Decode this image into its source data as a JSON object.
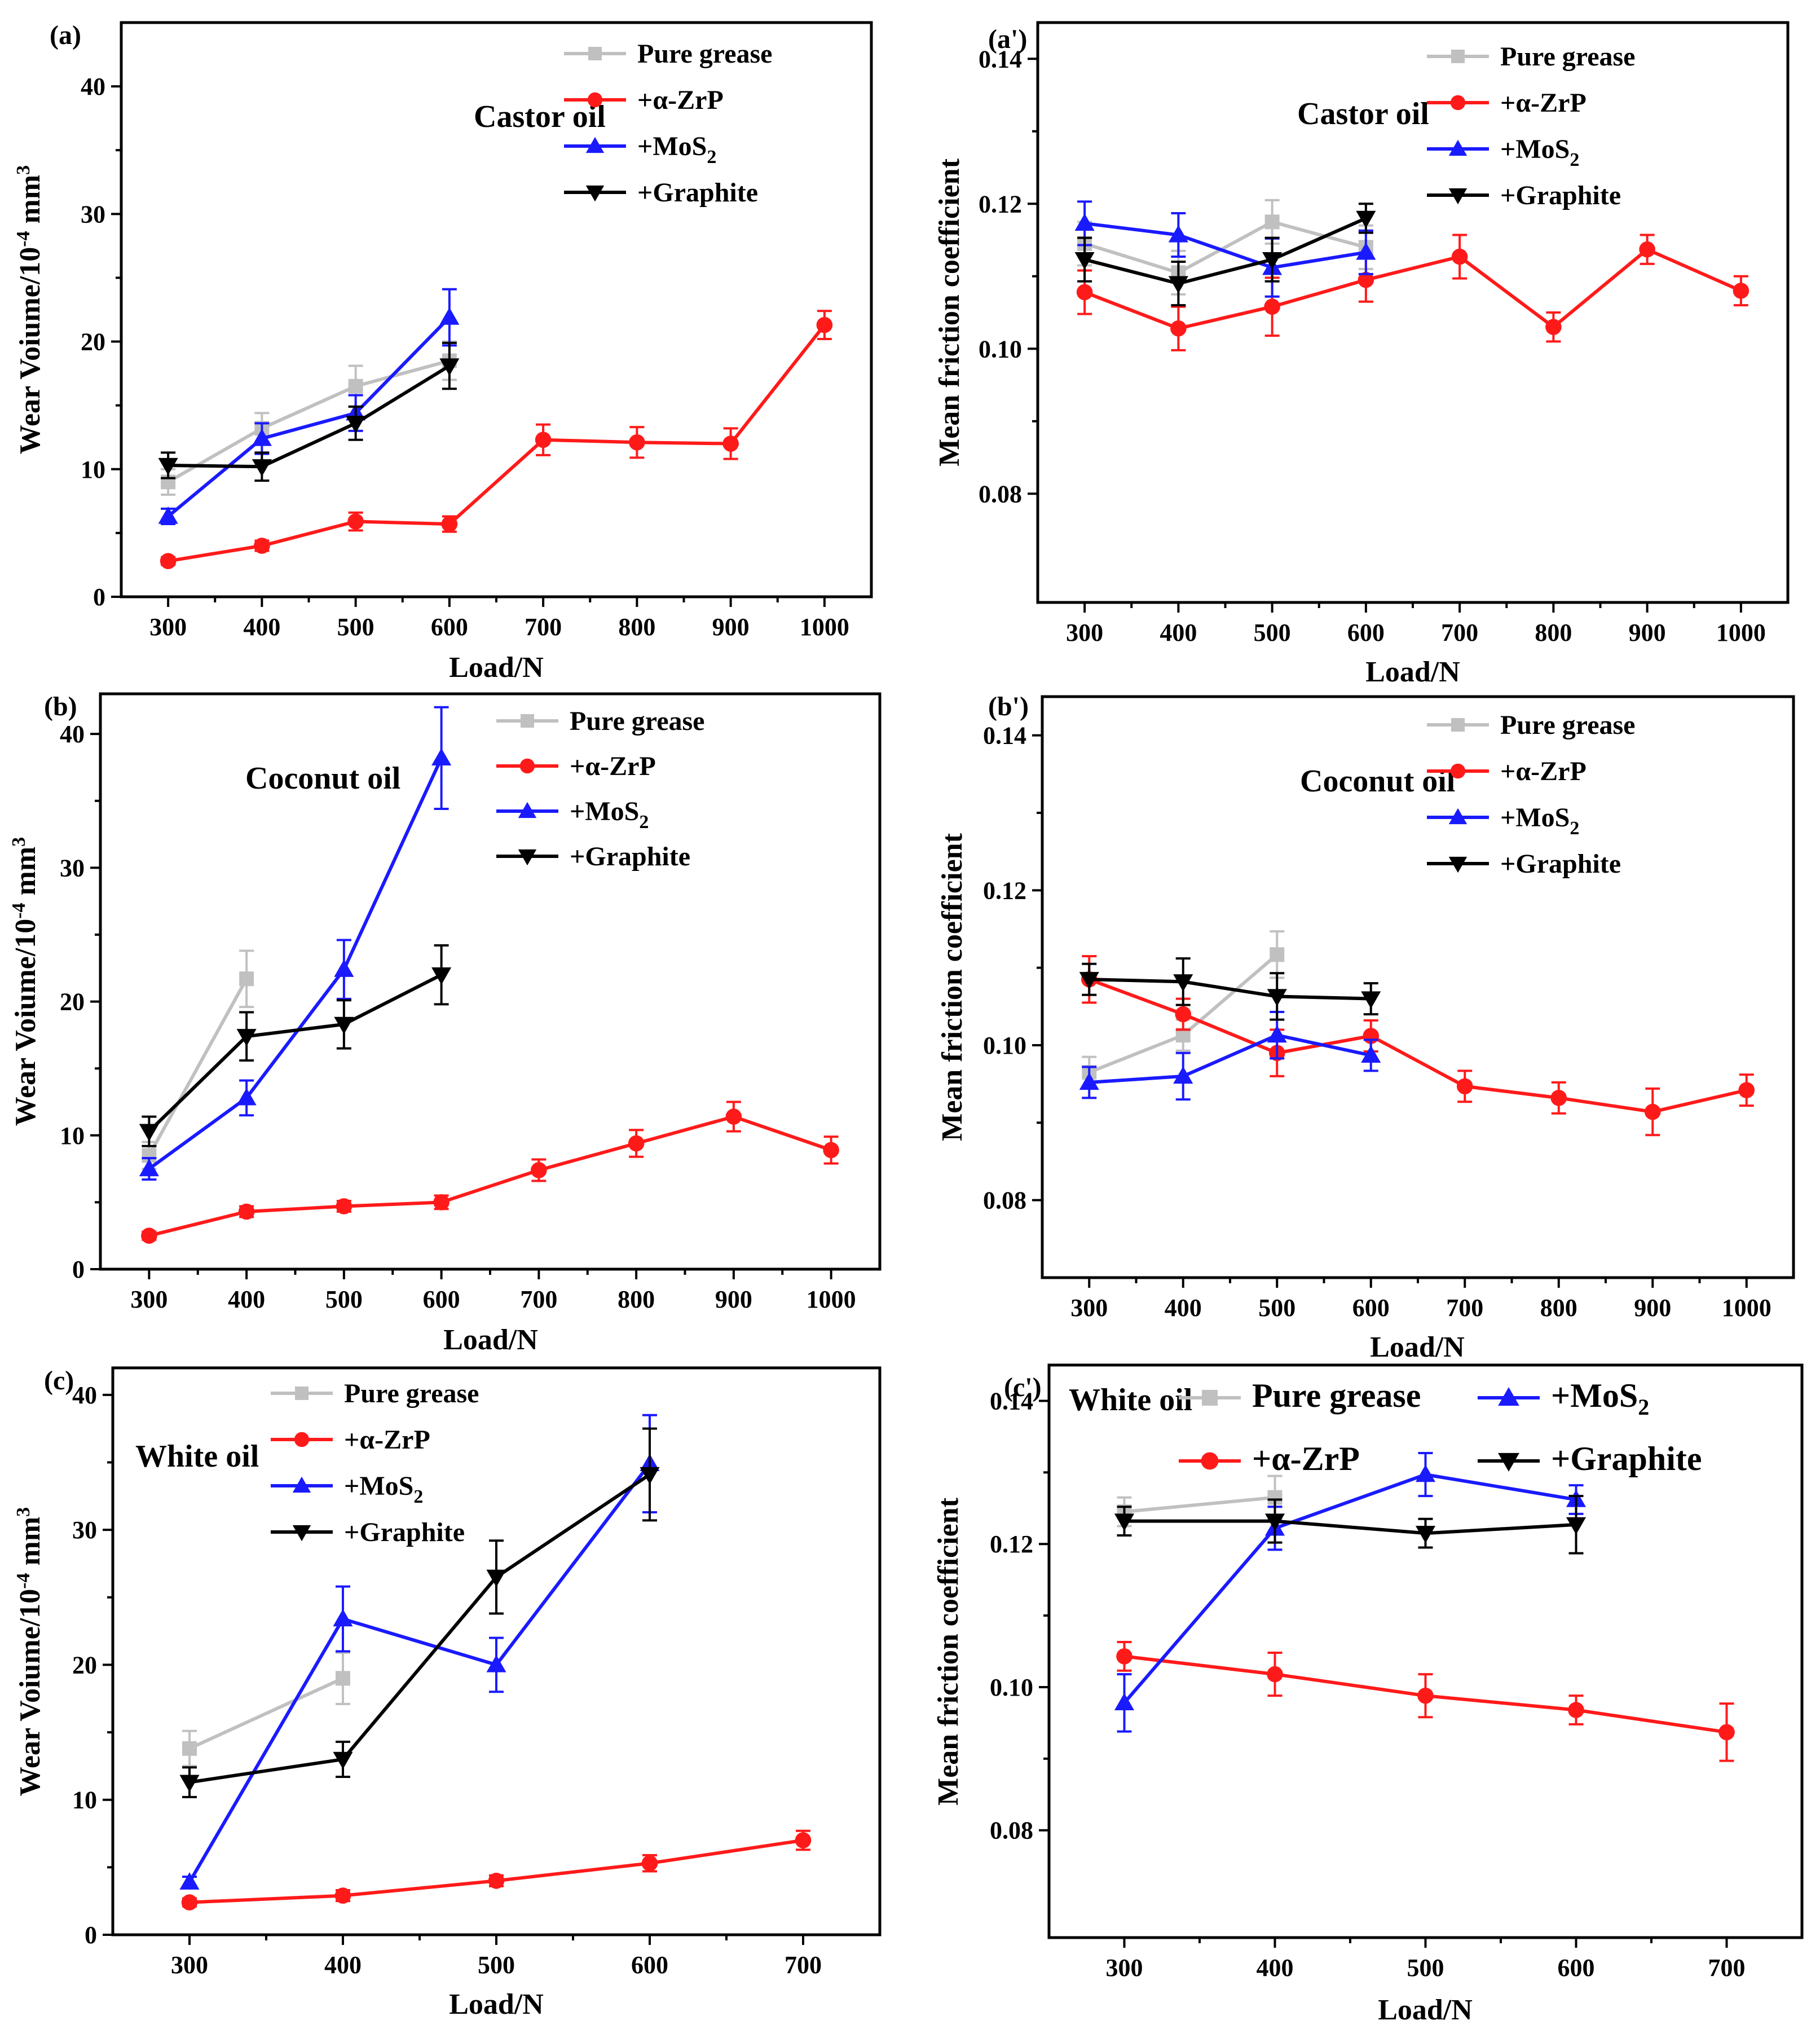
{
  "figure": {
    "series_styles": [
      {
        "name": "Pure grease",
        "color": "#c0c0c0",
        "marker": "square"
      },
      {
        "name": "+α-ZrP",
        "color": "#ff1a1a",
        "marker": "circle"
      },
      {
        "name": "+MoS2",
        "color": "#1a1aff",
        "marker": "triangle-up"
      },
      {
        "name": "+Graphite",
        "color": "#000000",
        "marker": "triangle-down"
      }
    ]
  },
  "chart_data": [
    {
      "id": "a",
      "panel_label": "(a)",
      "type": "line",
      "title": "Castor oil",
      "xlabel": "Load/N",
      "ylabel": "Wear Voiume/10⁻⁴ mm³",
      "xlim": [
        250,
        1050
      ],
      "ylim": [
        0,
        45
      ],
      "xticks": [
        300,
        400,
        500,
        600,
        700,
        800,
        900,
        1000
      ],
      "yticks": [
        0,
        10,
        20,
        30,
        40
      ],
      "ytick_decimals": 0,
      "legend": {
        "position": "top-right",
        "layout": "column",
        "entries": [
          {
            "text": "Pure grease"
          },
          {
            "text": "+α-ZrP"
          },
          {
            "text": "+MoS",
            "sub": "2"
          },
          {
            "text": "+Graphite"
          }
        ]
      },
      "series": [
        {
          "name": "Pure grease",
          "color": "#c0c0c0",
          "marker": "square",
          "x": [
            300,
            400,
            500,
            600
          ],
          "y": [
            9.0,
            13.2,
            16.5,
            18.5
          ],
          "err": [
            1.0,
            1.2,
            1.6,
            1.5
          ]
        },
        {
          "name": "+α-ZrP",
          "color": "#ff1a1a",
          "marker": "circle",
          "x": [
            300,
            400,
            500,
            600,
            700,
            800,
            900,
            1000
          ],
          "y": [
            2.8,
            4.0,
            5.9,
            5.7,
            12.3,
            12.1,
            12.0,
            21.3
          ],
          "err": [
            0.3,
            0.4,
            0.7,
            0.6,
            1.2,
            1.2,
            1.2,
            1.1
          ]
        },
        {
          "name": "+MoS2",
          "color": "#1a1aff",
          "marker": "triangle-up",
          "x": [
            300,
            400,
            500,
            600
          ],
          "y": [
            6.3,
            12.4,
            14.4,
            21.9
          ],
          "err": [
            0.6,
            1.2,
            1.4,
            2.2
          ]
        },
        {
          "name": "+Graphite",
          "color": "#000000",
          "marker": "triangle-down",
          "x": [
            300,
            400,
            500,
            600
          ],
          "y": [
            10.3,
            10.2,
            13.6,
            18.1
          ],
          "err": [
            1.0,
            1.1,
            1.3,
            1.8
          ]
        }
      ]
    },
    {
      "id": "a2",
      "panel_label": "(a')",
      "type": "line",
      "title": "Castor oil",
      "xlabel": "Load/N",
      "ylabel": "Mean friction coefficient",
      "xlim": [
        250,
        1050
      ],
      "ylim": [
        0.065,
        0.145
      ],
      "xticks": [
        300,
        400,
        500,
        600,
        700,
        800,
        900,
        1000
      ],
      "yticks": [
        0.08,
        0.1,
        0.12,
        0.14
      ],
      "ytick_decimals": 2,
      "legend": {
        "position": "top-right",
        "layout": "column",
        "entries": [
          {
            "text": "Pure grease"
          },
          {
            "text": "+α-ZrP"
          },
          {
            "text": "+MoS",
            "sub": "2"
          },
          {
            "text": "+Graphite"
          }
        ]
      },
      "series": [
        {
          "name": "Pure grease",
          "color": "#c0c0c0",
          "marker": "square",
          "x": [
            300,
            400,
            500,
            600
          ],
          "y": [
            0.1145,
            0.1105,
            0.1175,
            0.114
          ],
          "err": [
            0.003,
            0.003,
            0.003,
            0.003
          ]
        },
        {
          "name": "+α-ZrP",
          "color": "#ff1a1a",
          "marker": "circle",
          "x": [
            300,
            400,
            500,
            600,
            700,
            800,
            900,
            1000
          ],
          "y": [
            0.1078,
            0.1028,
            0.1058,
            0.1095,
            0.1127,
            0.103,
            0.1137,
            0.108
          ],
          "err": [
            0.003,
            0.003,
            0.004,
            0.003,
            0.003,
            0.002,
            0.002,
            0.002
          ]
        },
        {
          "name": "+MoS2",
          "color": "#1a1aff",
          "marker": "triangle-up",
          "x": [
            300,
            400,
            500,
            600
          ],
          "y": [
            0.1173,
            0.1157,
            0.1112,
            0.1133
          ],
          "err": [
            0.003,
            0.003,
            0.004,
            0.003
          ]
        },
        {
          "name": "+Graphite",
          "color": "#000000",
          "marker": "triangle-down",
          "x": [
            300,
            400,
            500,
            600
          ],
          "y": [
            0.1123,
            0.109,
            0.1123,
            0.118
          ],
          "err": [
            0.003,
            0.003,
            0.003,
            0.002
          ]
        }
      ]
    },
    {
      "id": "b",
      "panel_label": "(b)",
      "type": "line",
      "title": "Coconut oil",
      "xlabel": "Load/N",
      "ylabel": "Wear Voiume/10⁻⁴ mm³",
      "xlim": [
        250,
        1050
      ],
      "ylim": [
        0,
        43
      ],
      "xticks": [
        300,
        400,
        500,
        600,
        700,
        800,
        900,
        1000
      ],
      "yticks": [
        0,
        10,
        20,
        30,
        40
      ],
      "ytick_decimals": 0,
      "legend": {
        "position": "top-right",
        "layout": "column",
        "entries": [
          {
            "text": "Pure grease"
          },
          {
            "text": "+α-ZrP"
          },
          {
            "text": "+MoS",
            "sub": "2"
          },
          {
            "text": "+Graphite"
          }
        ]
      },
      "series": [
        {
          "name": "Pure grease",
          "color": "#c0c0c0",
          "marker": "square",
          "x": [
            300,
            400
          ],
          "y": [
            8.5,
            21.7
          ],
          "err": [
            1.0,
            2.1
          ]
        },
        {
          "name": "+α-ZrP",
          "color": "#ff1a1a",
          "marker": "circle",
          "x": [
            300,
            400,
            500,
            600,
            700,
            800,
            900,
            1000
          ],
          "y": [
            2.5,
            4.3,
            4.7,
            5.0,
            7.4,
            9.4,
            11.4,
            8.9
          ],
          "err": [
            0.3,
            0.4,
            0.4,
            0.5,
            0.8,
            1.0,
            1.1,
            1.0
          ]
        },
        {
          "name": "+MoS2",
          "color": "#1a1aff",
          "marker": "triangle-up",
          "x": [
            300,
            400,
            500,
            600
          ],
          "y": [
            7.5,
            12.8,
            22.4,
            38.2
          ],
          "err": [
            0.8,
            1.3,
            2.2,
            3.8
          ]
        },
        {
          "name": "+Graphite",
          "color": "#000000",
          "marker": "triangle-down",
          "x": [
            300,
            400,
            500,
            600
          ],
          "y": [
            10.3,
            17.4,
            18.3,
            22.0
          ],
          "err": [
            1.1,
            1.8,
            1.8,
            2.2
          ]
        }
      ]
    },
    {
      "id": "b2",
      "panel_label": "(b')",
      "type": "line",
      "title": "Coconut oil",
      "xlabel": "Load/N",
      "ylabel": "Mean friction coefficient",
      "xlim": [
        250,
        1050
      ],
      "ylim": [
        0.07,
        0.145
      ],
      "xticks": [
        300,
        400,
        500,
        600,
        700,
        800,
        900,
        1000
      ],
      "yticks": [
        0.08,
        0.1,
        0.12,
        0.14
      ],
      "ytick_decimals": 2,
      "legend": {
        "position": "top-right",
        "layout": "column",
        "entries": [
          {
            "text": "Pure grease"
          },
          {
            "text": "+α-ZrP"
          },
          {
            "text": "+MoS",
            "sub": "2"
          },
          {
            "text": "+Graphite"
          }
        ]
      },
      "series": [
        {
          "name": "Pure grease",
          "color": "#c0c0c0",
          "marker": "square",
          "x": [
            300,
            400,
            500
          ],
          "y": [
            0.0965,
            0.1013,
            0.1117
          ],
          "err": [
            0.002,
            0.002,
            0.003
          ]
        },
        {
          "name": "+α-ZrP",
          "color": "#ff1a1a",
          "marker": "circle",
          "x": [
            300,
            400,
            500,
            600,
            700,
            800,
            900,
            1000
          ],
          "y": [
            0.1085,
            0.104,
            0.099,
            0.1012,
            0.0947,
            0.0932,
            0.0914,
            0.0942
          ],
          "err": [
            0.003,
            0.002,
            0.003,
            0.002,
            0.002,
            0.002,
            0.003,
            0.002
          ]
        },
        {
          "name": "+MoS2",
          "color": "#1a1aff",
          "marker": "triangle-up",
          "x": [
            300,
            400,
            500,
            600
          ],
          "y": [
            0.0952,
            0.096,
            0.1013,
            0.0987
          ],
          "err": [
            0.002,
            0.003,
            0.003,
            0.002
          ]
        },
        {
          "name": "+Graphite",
          "color": "#000000",
          "marker": "triangle-down",
          "x": [
            300,
            400,
            500,
            600
          ],
          "y": [
            0.1085,
            0.1082,
            0.1063,
            0.106
          ],
          "err": [
            0.002,
            0.003,
            0.003,
            0.002
          ]
        }
      ]
    },
    {
      "id": "c",
      "panel_label": "(c)",
      "type": "line",
      "title": "White oil",
      "xlabel": "Load/N",
      "ylabel": "Wear Voiume/10⁻⁴ mm³",
      "xlim": [
        250,
        750
      ],
      "ylim": [
        0,
        42
      ],
      "xticks": [
        300,
        400,
        500,
        600,
        700
      ],
      "yticks": [
        0,
        10,
        20,
        30,
        40
      ],
      "ytick_decimals": 0,
      "legend": {
        "position": "top-center",
        "layout": "column",
        "entries": [
          {
            "text": "Pure grease"
          },
          {
            "text": "+α-ZrP"
          },
          {
            "text": "+MoS",
            "sub": "2"
          },
          {
            "text": "+Graphite"
          }
        ]
      },
      "series": [
        {
          "name": "Pure grease",
          "color": "#c0c0c0",
          "marker": "square",
          "x": [
            300,
            400
          ],
          "y": [
            13.8,
            19.0
          ],
          "err": [
            1.3,
            1.9
          ]
        },
        {
          "name": "+α-ZrP",
          "color": "#ff1a1a",
          "marker": "circle",
          "x": [
            300,
            400,
            500,
            600,
            700
          ],
          "y": [
            2.4,
            2.9,
            4.0,
            5.3,
            7.0
          ],
          "err": [
            0.3,
            0.4,
            0.4,
            0.6,
            0.7
          ]
        },
        {
          "name": "+MoS2",
          "color": "#1a1aff",
          "marker": "triangle-up",
          "x": [
            300,
            400,
            500,
            600
          ],
          "y": [
            3.9,
            23.4,
            20.0,
            34.9
          ],
          "err": [
            0.4,
            2.4,
            2.0,
            3.6
          ]
        },
        {
          "name": "+Graphite",
          "color": "#000000",
          "marker": "triangle-down",
          "x": [
            300,
            400,
            500,
            600
          ],
          "y": [
            11.3,
            13.0,
            26.5,
            34.1
          ],
          "err": [
            1.1,
            1.3,
            2.7,
            3.4
          ]
        }
      ]
    },
    {
      "id": "c2",
      "panel_label": "(c')",
      "type": "line",
      "title": "White oil",
      "xlabel": "Load/N",
      "ylabel": "Mean friction coefficient",
      "xlim": [
        250,
        750
      ],
      "ylim": [
        0.065,
        0.145
      ],
      "xticks": [
        300,
        400,
        500,
        600,
        700
      ],
      "yticks": [
        0.08,
        0.1,
        0.12,
        0.14
      ],
      "ytick_decimals": 2,
      "legend": {
        "position": "top",
        "layout": "two-rows",
        "entries": [
          {
            "text": "Pure grease"
          },
          {
            "text": "+MoS",
            "sub": "2"
          },
          {
            "text": "+α-ZrP"
          },
          {
            "text": "+Graphite"
          }
        ]
      },
      "series": [
        {
          "name": "Pure grease",
          "color": "#c0c0c0",
          "marker": "square",
          "x": [
            300,
            400
          ],
          "y": [
            0.1245,
            0.1265
          ],
          "err": [
            0.002,
            0.003
          ]
        },
        {
          "name": "+α-ZrP",
          "color": "#ff1a1a",
          "marker": "circle",
          "x": [
            300,
            400,
            500,
            600,
            700
          ],
          "y": [
            0.1043,
            0.1018,
            0.0988,
            0.0968,
            0.0937
          ],
          "err": [
            0.002,
            0.003,
            0.003,
            0.002,
            0.004
          ]
        },
        {
          "name": "+MoS2",
          "color": "#1a1aff",
          "marker": "triangle-up",
          "x": [
            300,
            400,
            500,
            600
          ],
          "y": [
            0.0978,
            0.1222,
            0.1297,
            0.1262
          ],
          "err": [
            0.004,
            0.003,
            0.003,
            0.002
          ]
        },
        {
          "name": "+Graphite",
          "color": "#000000",
          "marker": "triangle-down",
          "x": [
            300,
            400,
            500,
            600
          ],
          "y": [
            0.1232,
            0.1232,
            0.1215,
            0.1227
          ],
          "err": [
            0.002,
            0.003,
            0.002,
            0.004
          ]
        }
      ]
    }
  ]
}
